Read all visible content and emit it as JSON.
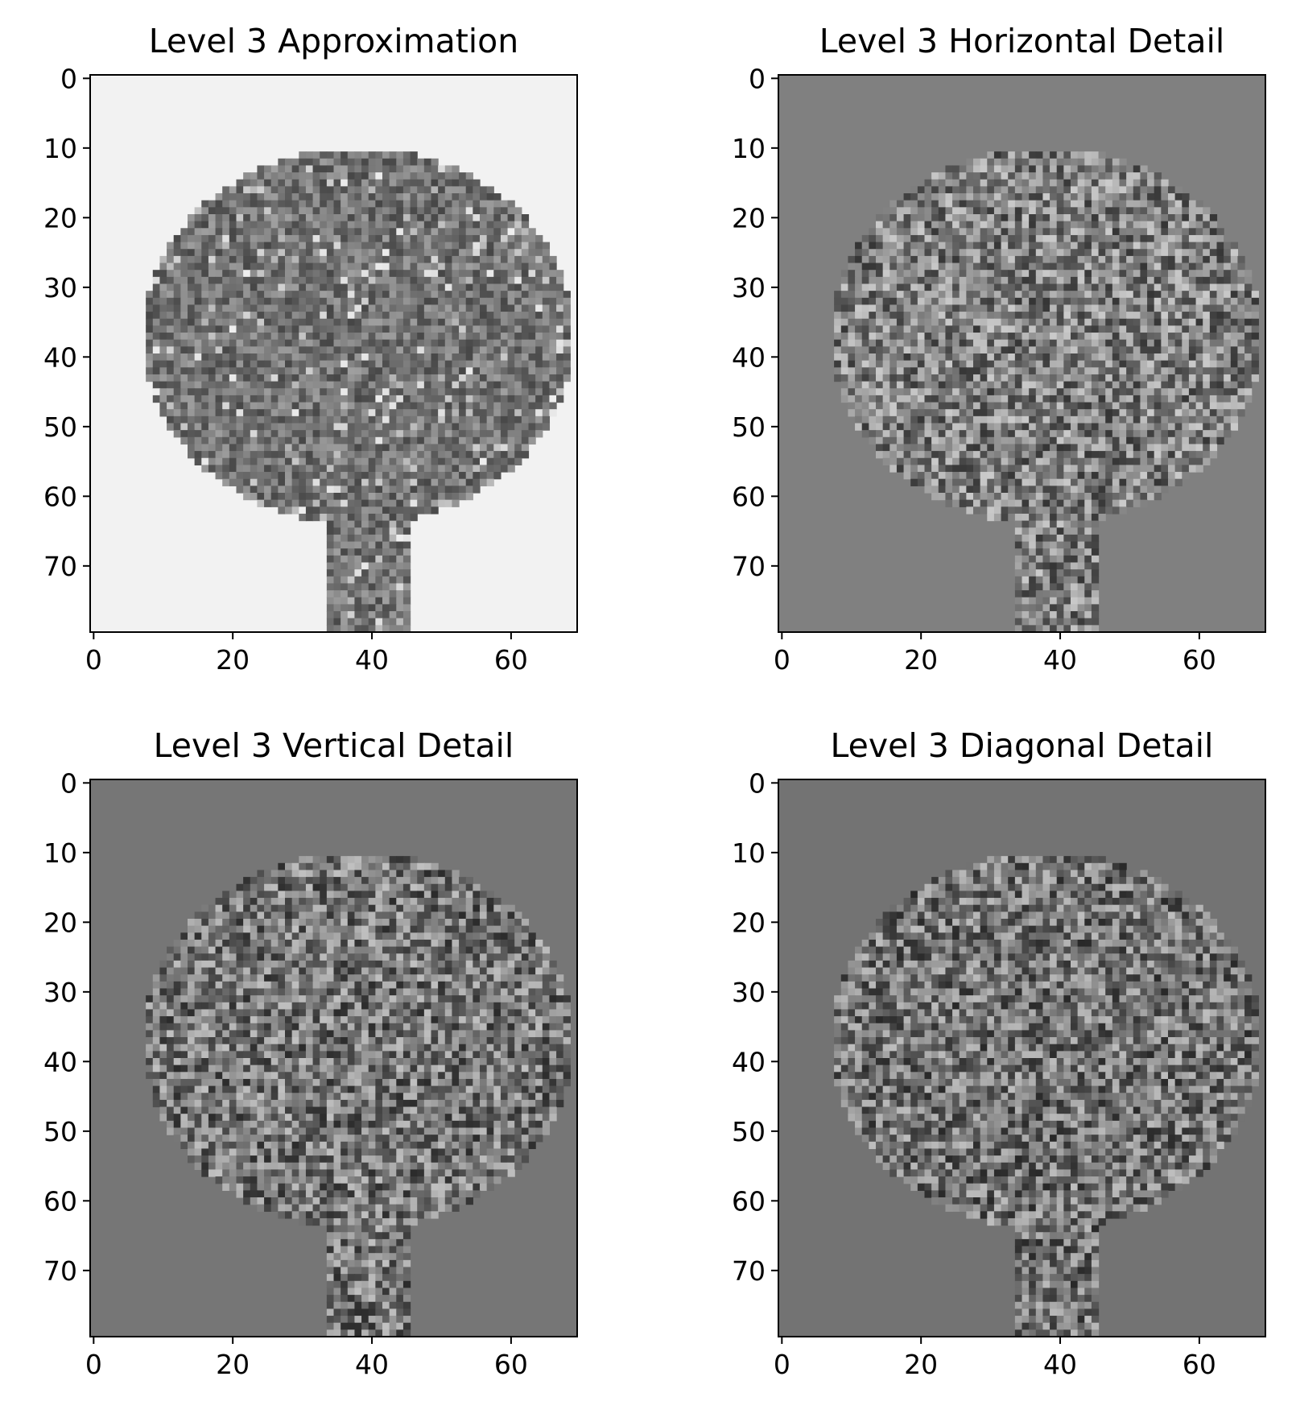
{
  "chart_data": [
    {
      "type": "heatmap",
      "title": "Level 3 Approximation",
      "x_ticks": [
        "0",
        "20",
        "40",
        "60"
      ],
      "y_ticks": [
        "0",
        "10",
        "20",
        "30",
        "40",
        "50",
        "60",
        "70"
      ],
      "xlim": [
        -0.5,
        69.5
      ],
      "ylim": [
        79.5,
        -0.5
      ],
      "colormap": "gray",
      "background": "#f2f2f2",
      "grid": false
    },
    {
      "type": "heatmap",
      "title": "Level 3 Horizontal Detail",
      "x_ticks": [
        "0",
        "20",
        "40",
        "60"
      ],
      "y_ticks": [
        "0",
        "10",
        "20",
        "30",
        "40",
        "50",
        "60",
        "70"
      ],
      "xlim": [
        -0.5,
        69.5
      ],
      "ylim": [
        79.5,
        -0.5
      ],
      "colormap": "gray",
      "background": "#808080",
      "grid": false
    },
    {
      "type": "heatmap",
      "title": "Level 3 Vertical Detail",
      "x_ticks": [
        "0",
        "20",
        "40",
        "60"
      ],
      "y_ticks": [
        "0",
        "10",
        "20",
        "30",
        "40",
        "50",
        "60",
        "70"
      ],
      "xlim": [
        -0.5,
        69.5
      ],
      "ylim": [
        79.5,
        -0.5
      ],
      "colormap": "gray",
      "background": "#767676",
      "grid": false
    },
    {
      "type": "heatmap",
      "title": "Level 3 Diagonal Detail",
      "x_ticks": [
        "0",
        "20",
        "40",
        "60"
      ],
      "y_ticks": [
        "0",
        "10",
        "20",
        "30",
        "40",
        "50",
        "60",
        "70"
      ],
      "xlim": [
        -0.5,
        69.5
      ],
      "ylim": [
        79.5,
        -0.5
      ],
      "colormap": "gray",
      "background": "#737373",
      "grid": false
    }
  ]
}
